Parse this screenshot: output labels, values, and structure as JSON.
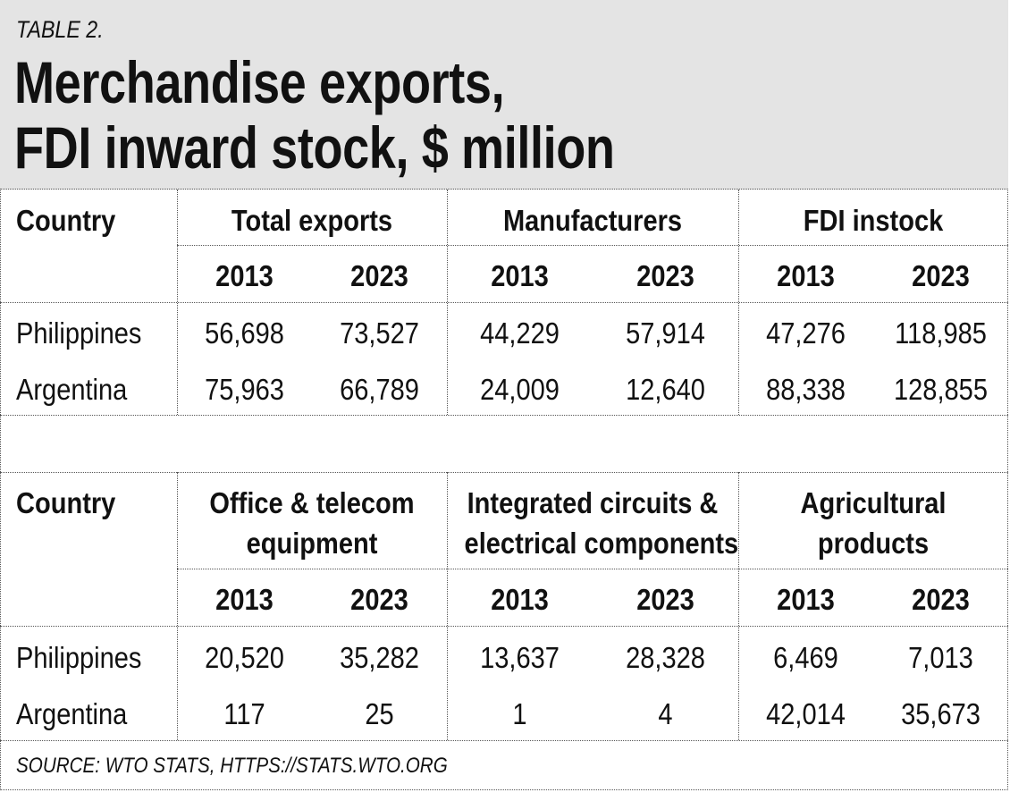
{
  "header": {
    "table_label": "TABLE 2.",
    "title_line1": "Merchandise exports,",
    "title_line2": "FDI inward stock, $ million"
  },
  "section1": {
    "country_label": "Country",
    "groups": [
      "Total exports",
      "Manufacturers",
      "FDI instock"
    ],
    "years": [
      "2013",
      "2023",
      "2013",
      "2023",
      "2013",
      "2023"
    ],
    "rows": [
      {
        "country": "Philippines",
        "values": [
          "56,698",
          "73,527",
          "44,229",
          "57,914",
          "47,276",
          "118,985"
        ]
      },
      {
        "country": "Argentina",
        "values": [
          "75,963",
          "66,789",
          "24,009",
          "12,640",
          "88,338",
          "128,855"
        ]
      }
    ]
  },
  "section2": {
    "country_label": "Country",
    "groups": [
      {
        "line1": "Office & telecom",
        "line2": "equipment"
      },
      {
        "line1": "Integrated circuits &",
        "line2": "electrical components"
      },
      {
        "line1": "Agricultural",
        "line2": "products"
      }
    ],
    "years": [
      "2013",
      "2023",
      "2013",
      "2023",
      "2013",
      "2023"
    ],
    "rows": [
      {
        "country": "Philippines",
        "values": [
          "20,520",
          "35,282",
          "13,637",
          "28,328",
          "6,469",
          "7,013"
        ]
      },
      {
        "country": "Argentina",
        "values": [
          "117",
          "25",
          "1",
          "4",
          "42,014",
          "35,673"
        ]
      }
    ]
  },
  "footer": {
    "source": "SOURCE: WTO STATS, HTTPS://STATS.WTO.ORG"
  }
}
